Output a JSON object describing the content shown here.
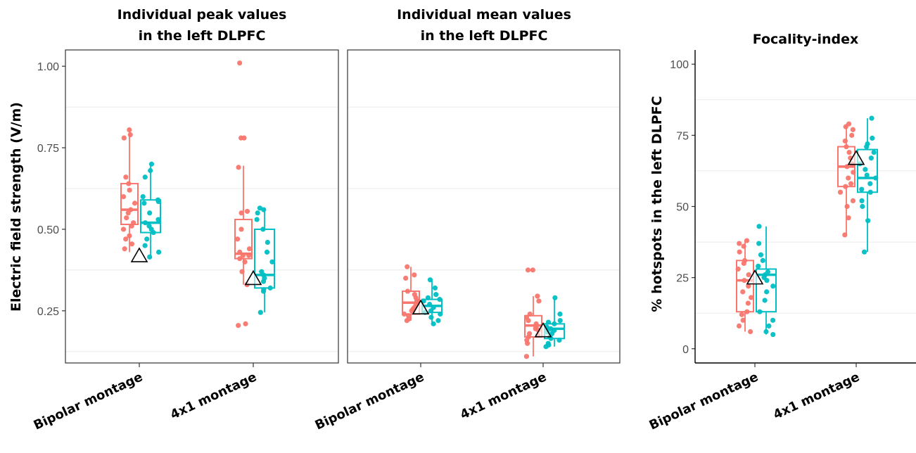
{
  "chart_data": [
    {
      "type": "box",
      "title_lines": [
        "Individual peak values",
        "in the left DLPFC"
      ],
      "ylabel": "Electric field strength (V/m)",
      "categories": [
        "Bipolar montage",
        "4x1 montage"
      ],
      "ylim": [
        0.09,
        1.05
      ],
      "yticks": [
        0.25,
        0.5,
        0.75,
        1.0
      ],
      "ytick_labels": [
        "0.25",
        "0.50",
        "0.75",
        "1.00"
      ],
      "minor_grid": [
        0.125,
        0.375,
        0.625,
        0.875
      ],
      "panel_border": true,
      "series_colors": [
        "#F8766D",
        "#00BFC4"
      ],
      "boxes": [
        [
          {
            "q1": 0.515,
            "median": 0.56,
            "q3": 0.64,
            "whisker_low": 0.43,
            "whisker_high": 0.805,
            "points": [
              0.805,
              0.79,
              0.78,
              0.66,
              0.64,
              0.62,
              0.6,
              0.58,
              0.56,
              0.55,
              0.535,
              0.52,
              0.51,
              0.5,
              0.48,
              0.47,
              0.455,
              0.44
            ]
          },
          {
            "q1": 0.49,
            "median": 0.52,
            "q3": 0.59,
            "whisker_low": 0.41,
            "whisker_high": 0.7,
            "points": [
              0.7,
              0.68,
              0.66,
              0.6,
              0.59,
              0.585,
              0.58,
              0.55,
              0.53,
              0.52,
              0.51,
              0.5,
              0.49,
              0.47,
              0.45,
              0.43,
              0.415
            ]
          }
        ],
        [
          {
            "q1": 0.41,
            "median": 0.425,
            "q3": 0.53,
            "whisker_low": 0.33,
            "whisker_high": 0.695,
            "points": [
              1.01,
              0.78,
              0.78,
              0.69,
              0.555,
              0.55,
              0.5,
              0.47,
              0.44,
              0.43,
              0.42,
              0.42,
              0.41,
              0.4,
              0.37,
              0.33,
              0.21,
              0.205
            ]
          },
          {
            "q1": 0.32,
            "median": 0.36,
            "q3": 0.5,
            "whisker_low": 0.245,
            "whisker_high": 0.565,
            "points": [
              0.565,
              0.56,
              0.55,
              0.53,
              0.5,
              0.46,
              0.43,
              0.4,
              0.37,
              0.36,
              0.35,
              0.34,
              0.32,
              0.315,
              0.31,
              0.245
            ]
          }
        ]
      ],
      "reference_triangles": [
        0.42,
        0.35
      ]
    },
    {
      "type": "box",
      "title_lines": [
        "Individual mean values",
        "in the left DLPFC"
      ],
      "ylabel": "",
      "categories": [
        "Bipolar montage",
        "4x1 montage"
      ],
      "ylim": [
        0.09,
        1.05
      ],
      "yticks": [],
      "ytick_labels": [],
      "minor_grid": [
        0.125,
        0.375,
        0.625,
        0.875
      ],
      "panel_border": true,
      "series_colors": [
        "#F8766D",
        "#00BFC4"
      ],
      "boxes": [
        [
          {
            "q1": 0.24,
            "median": 0.275,
            "q3": 0.31,
            "whisker_low": 0.22,
            "whisker_high": 0.385,
            "points": [
              0.385,
              0.36,
              0.35,
              0.31,
              0.3,
              0.29,
              0.28,
              0.28,
              0.27,
              0.26,
              0.255,
              0.25,
              0.24,
              0.235,
              0.225,
              0.22
            ]
          },
          {
            "q1": 0.245,
            "median": 0.265,
            "q3": 0.285,
            "whisker_low": 0.21,
            "whisker_high": 0.345,
            "points": [
              0.345,
              0.32,
              0.3,
              0.29,
              0.285,
              0.28,
              0.27,
              0.26,
              0.25,
              0.245,
              0.24,
              0.23,
              0.22,
              0.21
            ]
          }
        ],
        [
          {
            "q1": 0.17,
            "median": 0.205,
            "q3": 0.235,
            "whisker_low": 0.11,
            "whisker_high": 0.295,
            "points": [
              0.375,
              0.375,
              0.295,
              0.28,
              0.24,
              0.23,
              0.22,
              0.21,
              0.2,
              0.195,
              0.19,
              0.18,
              0.175,
              0.17,
              0.16,
              0.15,
              0.11
            ]
          },
          {
            "q1": 0.165,
            "median": 0.195,
            "q3": 0.21,
            "whisker_low": 0.14,
            "whisker_high": 0.29,
            "points": [
              0.29,
              0.24,
              0.22,
              0.215,
              0.21,
              0.2,
              0.195,
              0.19,
              0.185,
              0.18,
              0.17,
              0.165,
              0.16,
              0.15,
              0.145,
              0.14
            ]
          }
        ]
      ],
      "reference_triangles": [
        0.26,
        0.19
      ]
    },
    {
      "type": "box",
      "title_lines": [
        "Focality-index"
      ],
      "ylabel": "% hotspots in the left DLPFC",
      "categories": [
        "Bipolar montage",
        "4x1 montage"
      ],
      "ylim": [
        -5,
        105
      ],
      "yticks": [
        0,
        25,
        50,
        75,
        100
      ],
      "ytick_labels": [
        "0",
        "25",
        "50",
        "75",
        "100"
      ],
      "minor_grid": [
        12.5,
        37.5,
        62.5,
        87.5
      ],
      "panel_border": false,
      "series_colors": [
        "#F8766D",
        "#00BFC4"
      ],
      "boxes": [
        [
          {
            "q1": 13,
            "median": 24,
            "q3": 31,
            "whisker_low": 6,
            "whisker_high": 38,
            "points": [
              38,
              37,
              36,
              34,
              31,
              30,
              28,
              26,
              24,
              22,
              20,
              18,
              16,
              13,
              12,
              10,
              8,
              6
            ]
          },
          {
            "q1": 13,
            "median": 26,
            "q3": 28,
            "whisker_low": 5,
            "whisker_high": 43,
            "points": [
              43,
              37,
              33,
              31,
              29,
              27,
              26,
              25,
              24,
              22,
              20,
              17,
              13,
              10,
              8,
              6,
              5
            ]
          }
        ],
        [
          {
            "q1": 57,
            "median": 64,
            "q3": 71,
            "whisker_low": 40,
            "whisker_high": 79,
            "points": [
              79,
              78,
              77,
              75,
              73,
              71,
              69,
              67,
              65,
              64,
              62,
              60,
              58,
              57,
              55,
              52,
              50,
              46,
              40
            ]
          },
          {
            "q1": 55,
            "median": 60,
            "q3": 70,
            "whisker_low": 34,
            "whisker_high": 81,
            "points": [
              81,
              74,
              72,
              71,
              69,
              67,
              65,
              63,
              61,
              60,
              58,
              56,
              55,
              52,
              50,
              45,
              34
            ]
          }
        ]
      ],
      "reference_triangles": [
        25,
        67
      ]
    }
  ]
}
